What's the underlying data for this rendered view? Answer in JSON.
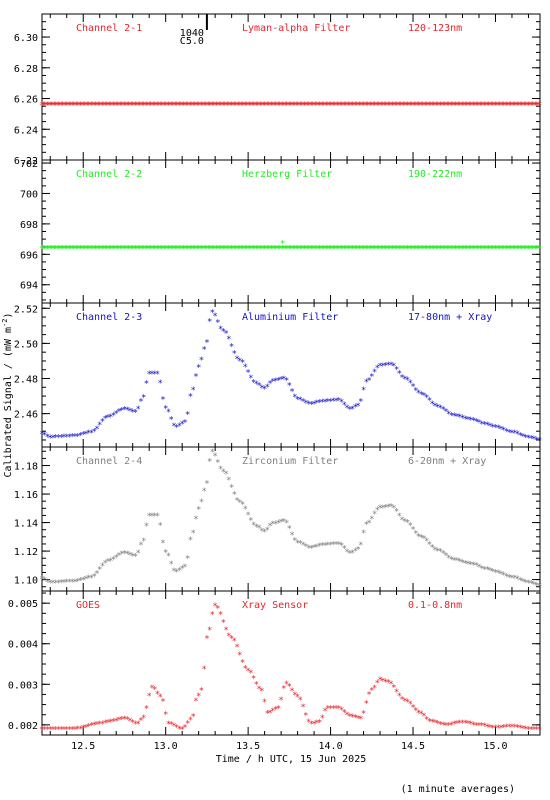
{
  "chart_data": [
    {
      "type": "scatter",
      "panel_id": "p1",
      "labels": {
        "channel": "Channel 2-1",
        "filter": "Lyman-alpha Filter",
        "band": "120-123nm"
      },
      "color": "#e8252a",
      "ylim": [
        6.22,
        6.315
      ],
      "yticks": [
        "6.22",
        "6.24",
        "6.26",
        "6.28",
        "6.30"
      ],
      "profile": "flat",
      "flat_value": 6.256,
      "annotation": {
        "text1": "1040",
        "text2": "C5.0",
        "x": 13.25
      }
    },
    {
      "type": "scatter",
      "panel_id": "p2",
      "labels": {
        "channel": "Channel 2-2",
        "filter": "Herzberg Filter",
        "band": "190-222nm"
      },
      "color": "#22ee22",
      "ylim": [
        692.8,
        702.2
      ],
      "yticks": [
        "694",
        "696",
        "698",
        "700",
        "702"
      ],
      "profile": "flat",
      "flat_value": 696.4,
      "spikes": [
        [
          13.71,
          696.75
        ]
      ]
    },
    {
      "type": "scatter",
      "panel_id": "p3",
      "labels": {
        "channel": "Channel 2-3",
        "filter": "Aluminium Filter",
        "band": "17-80nm + Xray"
      },
      "color": "#1414c8",
      "ylim": [
        2.441,
        2.523
      ],
      "yticks": [
        "2.46",
        "2.48",
        "2.50",
        "2.52"
      ],
      "profile": "euv",
      "profile_min": 2.445,
      "profile_max": 2.518
    },
    {
      "type": "scatter",
      "panel_id": "p4",
      "labels": {
        "channel": "Channel 2-4",
        "filter": "Zirconium Filter",
        "band": "6-20nm + Xray"
      },
      "color": "#808080",
      "ylim": [
        1.092,
        1.193
      ],
      "yticks": [
        "1.10",
        "1.12",
        "1.14",
        "1.16",
        "1.18"
      ],
      "profile": "euv",
      "profile_min": 1.096,
      "profile_max": 1.19
    },
    {
      "type": "scatter",
      "panel_id": "p5",
      "labels": {
        "channel": "GOES",
        "filter": "Xray Sensor",
        "band": "0.1-0.8nm"
      },
      "color": "#e8252a",
      "ylim": [
        0.00175,
        0.0053
      ],
      "yticks": [
        "0.002",
        "0.003",
        "0.004",
        "0.005"
      ],
      "profile": "xray",
      "profile_min": 0.0019,
      "profile_max": 0.0051
    }
  ],
  "xaxis": {
    "xlim": [
      12.25,
      15.27
    ],
    "ticks": [
      "12.5",
      "13.0",
      "13.5",
      "14.0",
      "14.5",
      "15.0"
    ],
    "label": "Time / h UTC, 15 Jun 2025"
  },
  "ylabel": "Calibrated Signal / (mW m",
  "ylabel_sup": "-2",
  "ylabel_end": ")",
  "footnote": "(1 minute averages)"
}
